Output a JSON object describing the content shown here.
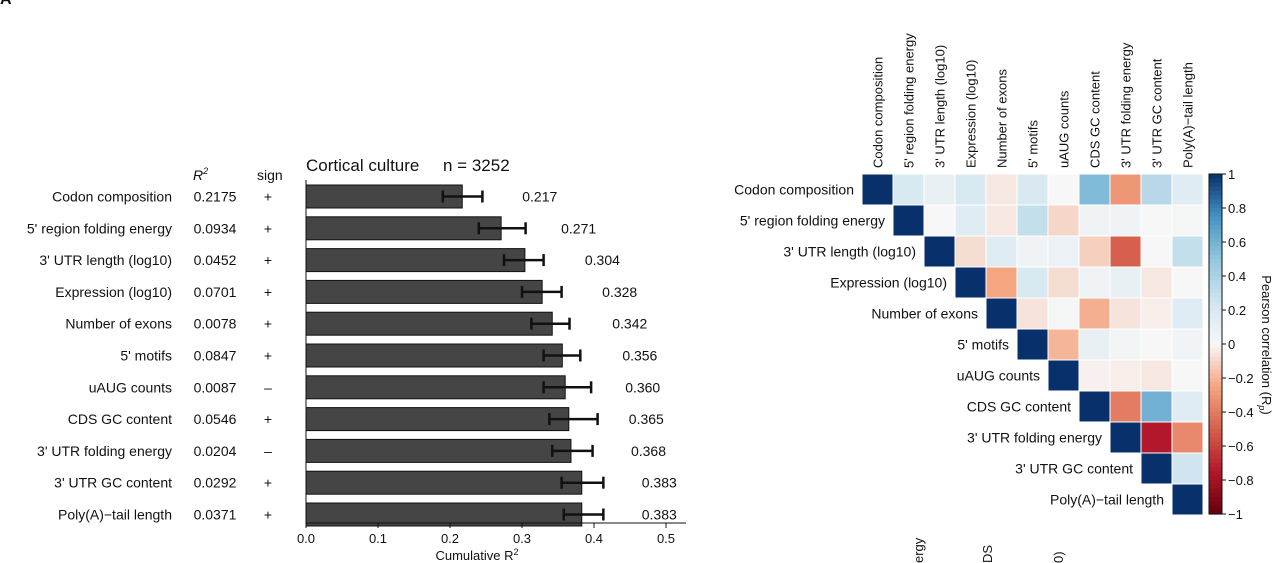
{
  "panel_label": "A",
  "cut_off_labels": [
    "ergy",
    "DS",
    "0)"
  ],
  "colors": {
    "bar_fill": "#454545",
    "text": "#111111",
    "positive_max": "#08306b",
    "negative_max": "#67000d"
  },
  "chart_data": [
    {
      "type": "bar",
      "orientation": "horizontal",
      "title": "Cortical culture",
      "sample_size_label": "n = 3252",
      "xlabel": "Cumulative R",
      "xlabel_superscript": "2",
      "xlim": [
        0,
        0.5
      ],
      "xticks": [
        "0.0",
        "0.1",
        "0.2",
        "0.3",
        "0.4",
        "0.5"
      ],
      "column_headers": {
        "r2": "R",
        "r2_superscript": "2",
        "sign": "sign"
      },
      "categories": [
        "Codon composition",
        "5' region folding energy",
        "3' UTR length (log10)",
        "Expression (log10)",
        "Number of exons",
        "5' motifs",
        "uAUG counts",
        "CDS GC content",
        "3' UTR folding energy",
        "3' UTR GC content",
        "Poly(A)−tail length"
      ],
      "r2": [
        "0.2175",
        "0.0934",
        "0.0452",
        "0.0701",
        "0.0078",
        "0.0847",
        "0.0087",
        "0.0546",
        "0.0204",
        "0.0292",
        "0.0371"
      ],
      "sign": [
        "+",
        "+",
        "+",
        "+",
        "+",
        "+",
        "–",
        "+",
        "–",
        "+",
        "+"
      ],
      "values": [
        0.217,
        0.271,
        0.304,
        0.328,
        0.342,
        0.356,
        0.36,
        0.365,
        0.368,
        0.383,
        0.383
      ],
      "value_labels": [
        "0.217",
        "0.271",
        "0.304",
        "0.328",
        "0.342",
        "0.356",
        "0.360",
        "0.365",
        "0.368",
        "0.383",
        "0.383"
      ],
      "error_low": [
        0.19,
        0.24,
        0.275,
        0.3,
        0.313,
        0.33,
        0.33,
        0.338,
        0.342,
        0.355,
        0.358
      ],
      "error_high": [
        0.245,
        0.305,
        0.33,
        0.355,
        0.366,
        0.381,
        0.396,
        0.405,
        0.398,
        0.413,
        0.413
      ]
    },
    {
      "type": "heatmap",
      "layout": "upper-triangle",
      "colorbar_label": "Pearson correlation (R",
      "colorbar_label_subscript": "p",
      "colorbar_label_close": ")",
      "colorbar_range": [
        -1,
        1
      ],
      "colorbar_ticks": [
        "1",
        "0.8",
        "0.6",
        "0.4",
        "0.2",
        "0",
        "−0.2",
        "−0.4",
        "−0.6",
        "−0.8",
        "−1"
      ],
      "labels": [
        "Codon composition",
        "5' region folding energy",
        "3' UTR length (log10)",
        "Expression (log10)",
        "Number of exons",
        "5' motifs",
        "uAUG counts",
        "CDS GC content",
        "3' UTR folding energy",
        "3' UTR GC content",
        "Poly(A)−tail length"
      ],
      "matrix": [
        [
          1.0,
          0.2,
          0.1,
          0.2,
          -0.05,
          0.2,
          0.0,
          0.55,
          -0.3,
          0.35,
          0.15
        ],
        [
          null,
          1.0,
          0.0,
          0.15,
          -0.05,
          0.3,
          -0.1,
          0.05,
          0.05,
          0.0,
          0.02
        ],
        [
          null,
          null,
          1.0,
          -0.08,
          0.15,
          0.05,
          0.08,
          -0.12,
          -0.5,
          0.0,
          0.3
        ],
        [
          null,
          null,
          null,
          1.0,
          -0.25,
          0.2,
          -0.08,
          0.05,
          0.1,
          -0.05,
          0.0
        ],
        [
          null,
          null,
          null,
          null,
          1.0,
          -0.06,
          0.02,
          -0.22,
          -0.06,
          -0.03,
          0.15
        ],
        [
          null,
          null,
          null,
          null,
          null,
          1.0,
          -0.2,
          0.1,
          0.03,
          0.0,
          0.04
        ],
        [
          null,
          null,
          null,
          null,
          null,
          null,
          1.0,
          -0.02,
          -0.03,
          -0.05,
          0.0
        ],
        [
          null,
          null,
          null,
          null,
          null,
          null,
          null,
          1.0,
          -0.4,
          0.6,
          0.15
        ],
        [
          null,
          null,
          null,
          null,
          null,
          null,
          null,
          null,
          1.0,
          -0.75,
          -0.35
        ],
        [
          null,
          null,
          null,
          null,
          null,
          null,
          null,
          null,
          null,
          1.0,
          0.25
        ],
        [
          null,
          null,
          null,
          null,
          null,
          null,
          null,
          null,
          null,
          null,
          1.0
        ]
      ]
    }
  ]
}
